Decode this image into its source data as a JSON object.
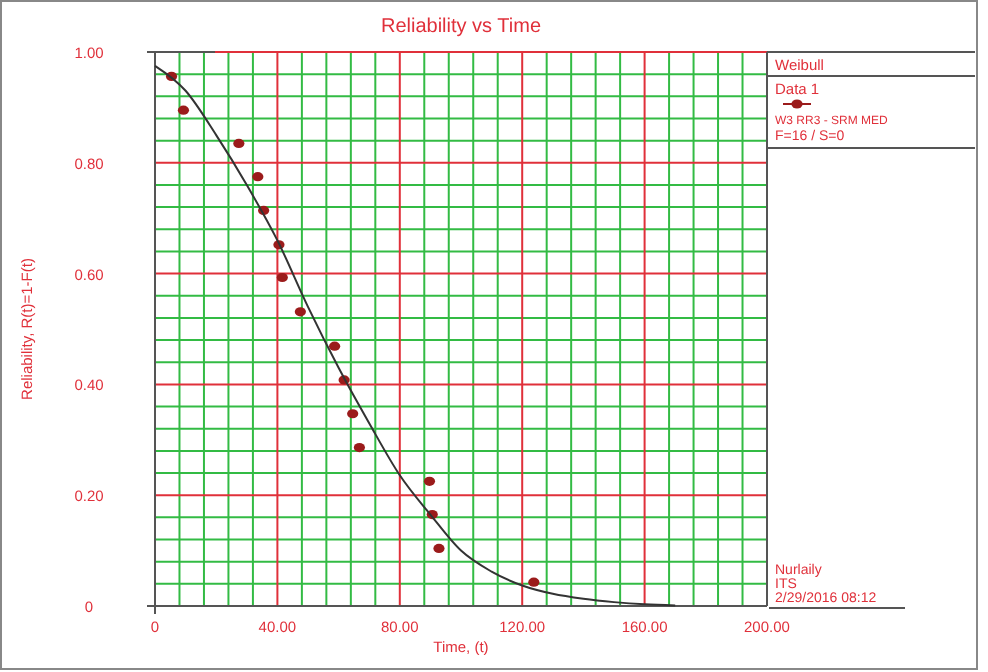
{
  "chart_data": {
    "type": "scatter",
    "title": "Reliability vs Time",
    "xlabel": "Time, (t)",
    "ylabel": "Reliability, R(t)=1-F(t)",
    "legend_title": "Weibull",
    "legend": "right",
    "grid": true,
    "marker": "circle",
    "xlim": [
      0,
      200
    ],
    "ylim": [
      0,
      1
    ],
    "xticks": [
      0,
      {
        "value": 8,
        "label": null
      },
      {
        "value": 16,
        "label": null
      },
      {
        "value": 24,
        "label": null
      },
      {
        "value": 32,
        "label": null
      },
      {
        "value": 40,
        "label": "40.00"
      },
      {
        "value": 48,
        "label": null
      },
      {
        "value": 56,
        "label": null
      },
      {
        "value": 64,
        "label": null
      },
      {
        "value": 72,
        "label": null
      },
      {
        "value": 80,
        "label": "80.00"
      },
      {
        "value": 88,
        "label": null
      },
      {
        "value": 96,
        "label": null
      },
      {
        "value": 104,
        "label": null
      },
      {
        "value": 112,
        "label": null
      },
      {
        "value": 120,
        "label": "120.00"
      },
      {
        "value": 128,
        "label": null
      },
      {
        "value": 136,
        "label": null
      },
      {
        "value": 144,
        "label": null
      },
      {
        "value": 152,
        "label": null
      },
      {
        "value": 160,
        "label": "160.00"
      },
      {
        "value": 168,
        "label": null
      },
      {
        "value": 176,
        "label": null
      },
      {
        "value": 184,
        "label": null
      },
      {
        "value": 192,
        "label": null
      },
      {
        "value": 200,
        "label": "200.00"
      }
    ],
    "yticks": [
      0,
      {
        "value": 0.04,
        "label": null
      },
      {
        "value": 0.08,
        "label": null
      },
      {
        "value": 0.12,
        "label": null
      },
      {
        "value": 0.16,
        "label": null
      },
      {
        "value": 0.2,
        "label": "0.20"
      },
      {
        "value": 0.24,
        "label": null
      },
      {
        "value": 0.28,
        "label": null
      },
      {
        "value": 0.32,
        "label": null
      },
      {
        "value": 0.36,
        "label": null
      },
      {
        "value": 0.4,
        "label": "0.40"
      },
      {
        "value": 0.44,
        "label": null
      },
      {
        "value": 0.48,
        "label": null
      },
      {
        "value": 0.52,
        "label": null
      },
      {
        "value": 0.56,
        "label": null
      },
      {
        "value": 0.6,
        "label": "0.60"
      },
      {
        "value": 0.64,
        "label": null
      },
      {
        "value": 0.68,
        "label": null
      },
      {
        "value": 0.72,
        "label": null
      },
      {
        "value": 0.76,
        "label": null
      },
      {
        "value": 0.8,
        "label": "0.80"
      },
      {
        "value": 0.84,
        "label": null
      },
      {
        "value": 0.88,
        "label": null
      },
      {
        "value": 0.92,
        "label": null
      },
      {
        "value": 0.96,
        "label": null
      },
      {
        "value": 1,
        "label": "1.00"
      }
    ],
    "series": [
      {
        "name": "Data 1",
        "color": "#9b1b1b",
        "x": [
          5.4,
          9.3,
          27.4,
          33.6,
          35.5,
          40.5,
          41.6,
          47.5,
          58.7,
          61.8,
          64.6,
          66.8,
          89.7,
          90.6,
          92.8,
          123.8
        ],
        "values": [
          0.956,
          0.895,
          0.835,
          0.775,
          0.714,
          0.652,
          0.593,
          0.531,
          0.469,
          0.408,
          0.347,
          0.286,
          0.225,
          0.165,
          0.104,
          0.043
        ]
      },
      {
        "type": "line",
        "color": "#333333",
        "marker": "none",
        "x": [
          0,
          10,
          20,
          30,
          40,
          50,
          60,
          70,
          80,
          90,
          100,
          110,
          120,
          130,
          140,
          150,
          160,
          170
        ],
        "values": [
          0.975,
          0.93,
          0.85,
          0.76,
          0.66,
          0.54,
          0.43,
          0.33,
          0.236,
          0.165,
          0.1,
          0.062,
          0.037,
          0.022,
          0.013,
          0.007,
          0.003,
          0.001
        ]
      }
    ],
    "annotations": [
      "W3 RR3 - SRM MED",
      "F=16 / S=0",
      "Nurlaily",
      "ITS",
      "2/29/2016 08:12"
    ]
  }
}
